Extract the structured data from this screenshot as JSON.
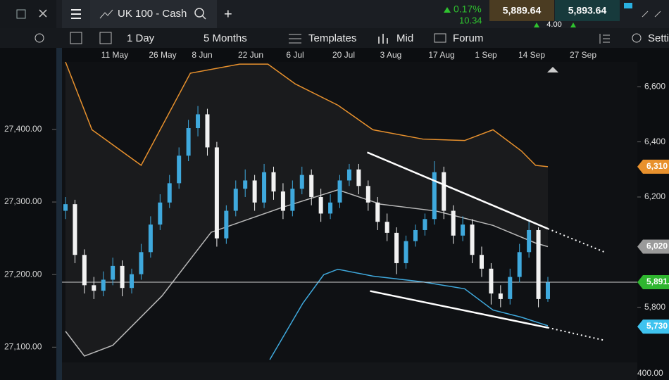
{
  "toolbar": {
    "instrument": "UK 100 - Cash",
    "new_tab": "+",
    "change_pct": "0.17%",
    "change": "10.34",
    "sell": "5,889.64",
    "spread": "4.00",
    "buy": "5,893.64"
  },
  "chart_toolbar": {
    "interval": "1 Day",
    "range": "5 Months",
    "templates": "Templates",
    "price_type": "Mid",
    "forum": "Forum",
    "settings": "Setti"
  },
  "chart_data": {
    "type": "candlestick",
    "x_labels": [
      "11 May",
      "26 May",
      "8 Jun",
      "22 Jun",
      "6 Jul",
      "20 Jul",
      "3 Aug",
      "17 Aug",
      "1 Sep",
      "14 Sep",
      "27 Sep"
    ],
    "up_color": "#3fa9dd",
    "down_color": "#f2f2f2",
    "candles": [
      [
        6150,
        6200,
        6120,
        6174
      ],
      [
        6174,
        6190,
        5960,
        5990
      ],
      [
        5990,
        6010,
        5850,
        5880
      ],
      [
        5880,
        5910,
        5830,
        5860
      ],
      [
        5860,
        5930,
        5840,
        5900
      ],
      [
        5900,
        5980,
        5880,
        5950
      ],
      [
        5950,
        5970,
        5840,
        5870
      ],
      [
        5870,
        5940,
        5850,
        5920
      ],
      [
        5920,
        6030,
        5900,
        6000
      ],
      [
        6000,
        6130,
        5980,
        6100
      ],
      [
        6100,
        6210,
        6080,
        6180
      ],
      [
        6180,
        6280,
        6160,
        6250
      ],
      [
        6250,
        6380,
        6230,
        6350
      ],
      [
        6350,
        6480,
        6330,
        6450
      ],
      [
        6450,
        6530,
        6420,
        6500
      ],
      [
        6500,
        6520,
        6350,
        6380
      ],
      [
        6380,
        6400,
        6020,
        6050
      ],
      [
        6050,
        6170,
        6030,
        6150
      ],
      [
        6150,
        6260,
        6130,
        6230
      ],
      [
        6230,
        6300,
        6200,
        6260
      ],
      [
        6260,
        6280,
        6150,
        6180
      ],
      [
        6180,
        6320,
        6160,
        6290
      ],
      [
        6290,
        6310,
        6190,
        6220
      ],
      [
        6220,
        6250,
        6120,
        6150
      ],
      [
        6150,
        6260,
        6130,
        6230
      ],
      [
        6230,
        6310,
        6210,
        6280
      ],
      [
        6280,
        6300,
        6170,
        6200
      ],
      [
        6200,
        6230,
        6110,
        6140
      ],
      [
        6140,
        6210,
        6120,
        6180
      ],
      [
        6180,
        6280,
        6160,
        6260
      ],
      [
        6260,
        6320,
        6240,
        6300
      ],
      [
        6300,
        6320,
        6210,
        6240
      ],
      [
        6240,
        6260,
        6150,
        6180
      ],
      [
        6180,
        6200,
        6080,
        6110
      ],
      [
        6110,
        6140,
        6040,
        6070
      ],
      [
        6070,
        6090,
        5920,
        5960
      ],
      [
        5960,
        6060,
        5940,
        6040
      ],
      [
        6040,
        6100,
        6020,
        6080
      ],
      [
        6080,
        6140,
        6060,
        6120
      ],
      [
        6120,
        6330,
        6100,
        6290
      ],
      [
        6290,
        6310,
        6120,
        6150
      ],
      [
        6150,
        6170,
        6030,
        6060
      ],
      [
        6060,
        6130,
        6040,
        6100
      ],
      [
        6100,
        6120,
        5960,
        5990
      ],
      [
        5990,
        6020,
        5910,
        5940
      ],
      [
        5940,
        5960,
        5810,
        5850
      ],
      [
        5850,
        5880,
        5800,
        5830
      ],
      [
        5830,
        5940,
        5810,
        5910
      ],
      [
        5910,
        6030,
        5890,
        6000
      ],
      [
        6000,
        6110,
        5980,
        6080
      ],
      [
        6080,
        6090,
        5800,
        5830
      ],
      [
        5830,
        5910,
        5820,
        5890
      ]
    ],
    "bands": [
      {
        "color": "#e8912d",
        "x": [
          0,
          2.8,
          8,
          13.2,
          18.4,
          21.4,
          24.3,
          28.8,
          32.5,
          37.8,
          42.2,
          45.2,
          48.2,
          49.7,
          51
        ],
        "values": [
          6690,
          6444,
          6315,
          6649,
          6682,
          6682,
          6610,
          6533,
          6444,
          6410,
          6405,
          6444,
          6367,
          6315,
          6310
        ]
      },
      {
        "color": "#b9b9b9",
        "x": [
          0,
          2,
          5,
          10.2,
          15.4,
          22.9,
          28.8,
          33.3,
          39.2,
          45.2,
          49.7,
          51
        ],
        "values": [
          5713,
          5623,
          5662,
          5841,
          6072,
          6162,
          6226,
          6174,
          6149,
          6097,
          6033,
          6020
        ]
      },
      {
        "color": "#3fa9dd",
        "x": [
          21.6,
          25.1,
          27.3,
          28.8,
          32.5,
          37.8,
          42.2,
          45.2,
          48.2,
          51
        ],
        "values": [
          5610,
          5815,
          5918,
          5938,
          5913,
          5892,
          5867,
          5790,
          5764,
          5733
        ]
      }
    ],
    "trend_lines": [
      {
        "x": [
          31.9,
          51,
          57
        ],
        "values": [
          6362,
          6085,
          6000
        ]
      },
      {
        "x": [
          32.2,
          51,
          57
        ],
        "values": [
          5859,
          5726,
          5680
        ]
      }
    ],
    "last_price": 5891,
    "ylim": [
      5600,
      6690
    ],
    "yticks": [
      {
        "value": 6600,
        "label": "6,600"
      },
      {
        "value": 6400,
        "label": "6,400"
      },
      {
        "value": 6200,
        "label": "6,200"
      },
      {
        "value": 5800,
        "label": "5,800"
      }
    ],
    "y2lim": [
      27079,
      27493
    ],
    "y2ticks": [
      {
        "value": 27400,
        "label": "27,400.00"
      },
      {
        "value": 27300,
        "label": "27,300.00"
      },
      {
        "value": 27200,
        "label": "27,200.00"
      },
      {
        "value": 27100,
        "label": "27,100.00"
      }
    ],
    "axis_fragment": "400.00",
    "price_tags": [
      {
        "value": 6310,
        "label": "6,310",
        "color": "#e8912d"
      },
      {
        "value": 6020,
        "label": "6,020",
        "color": "#9a9a9a"
      },
      {
        "value": 5891,
        "label": "5,891.",
        "color": "#2fb62f"
      },
      {
        "value": 5730,
        "label": "5,730",
        "color": "#3fc3ef"
      }
    ]
  }
}
